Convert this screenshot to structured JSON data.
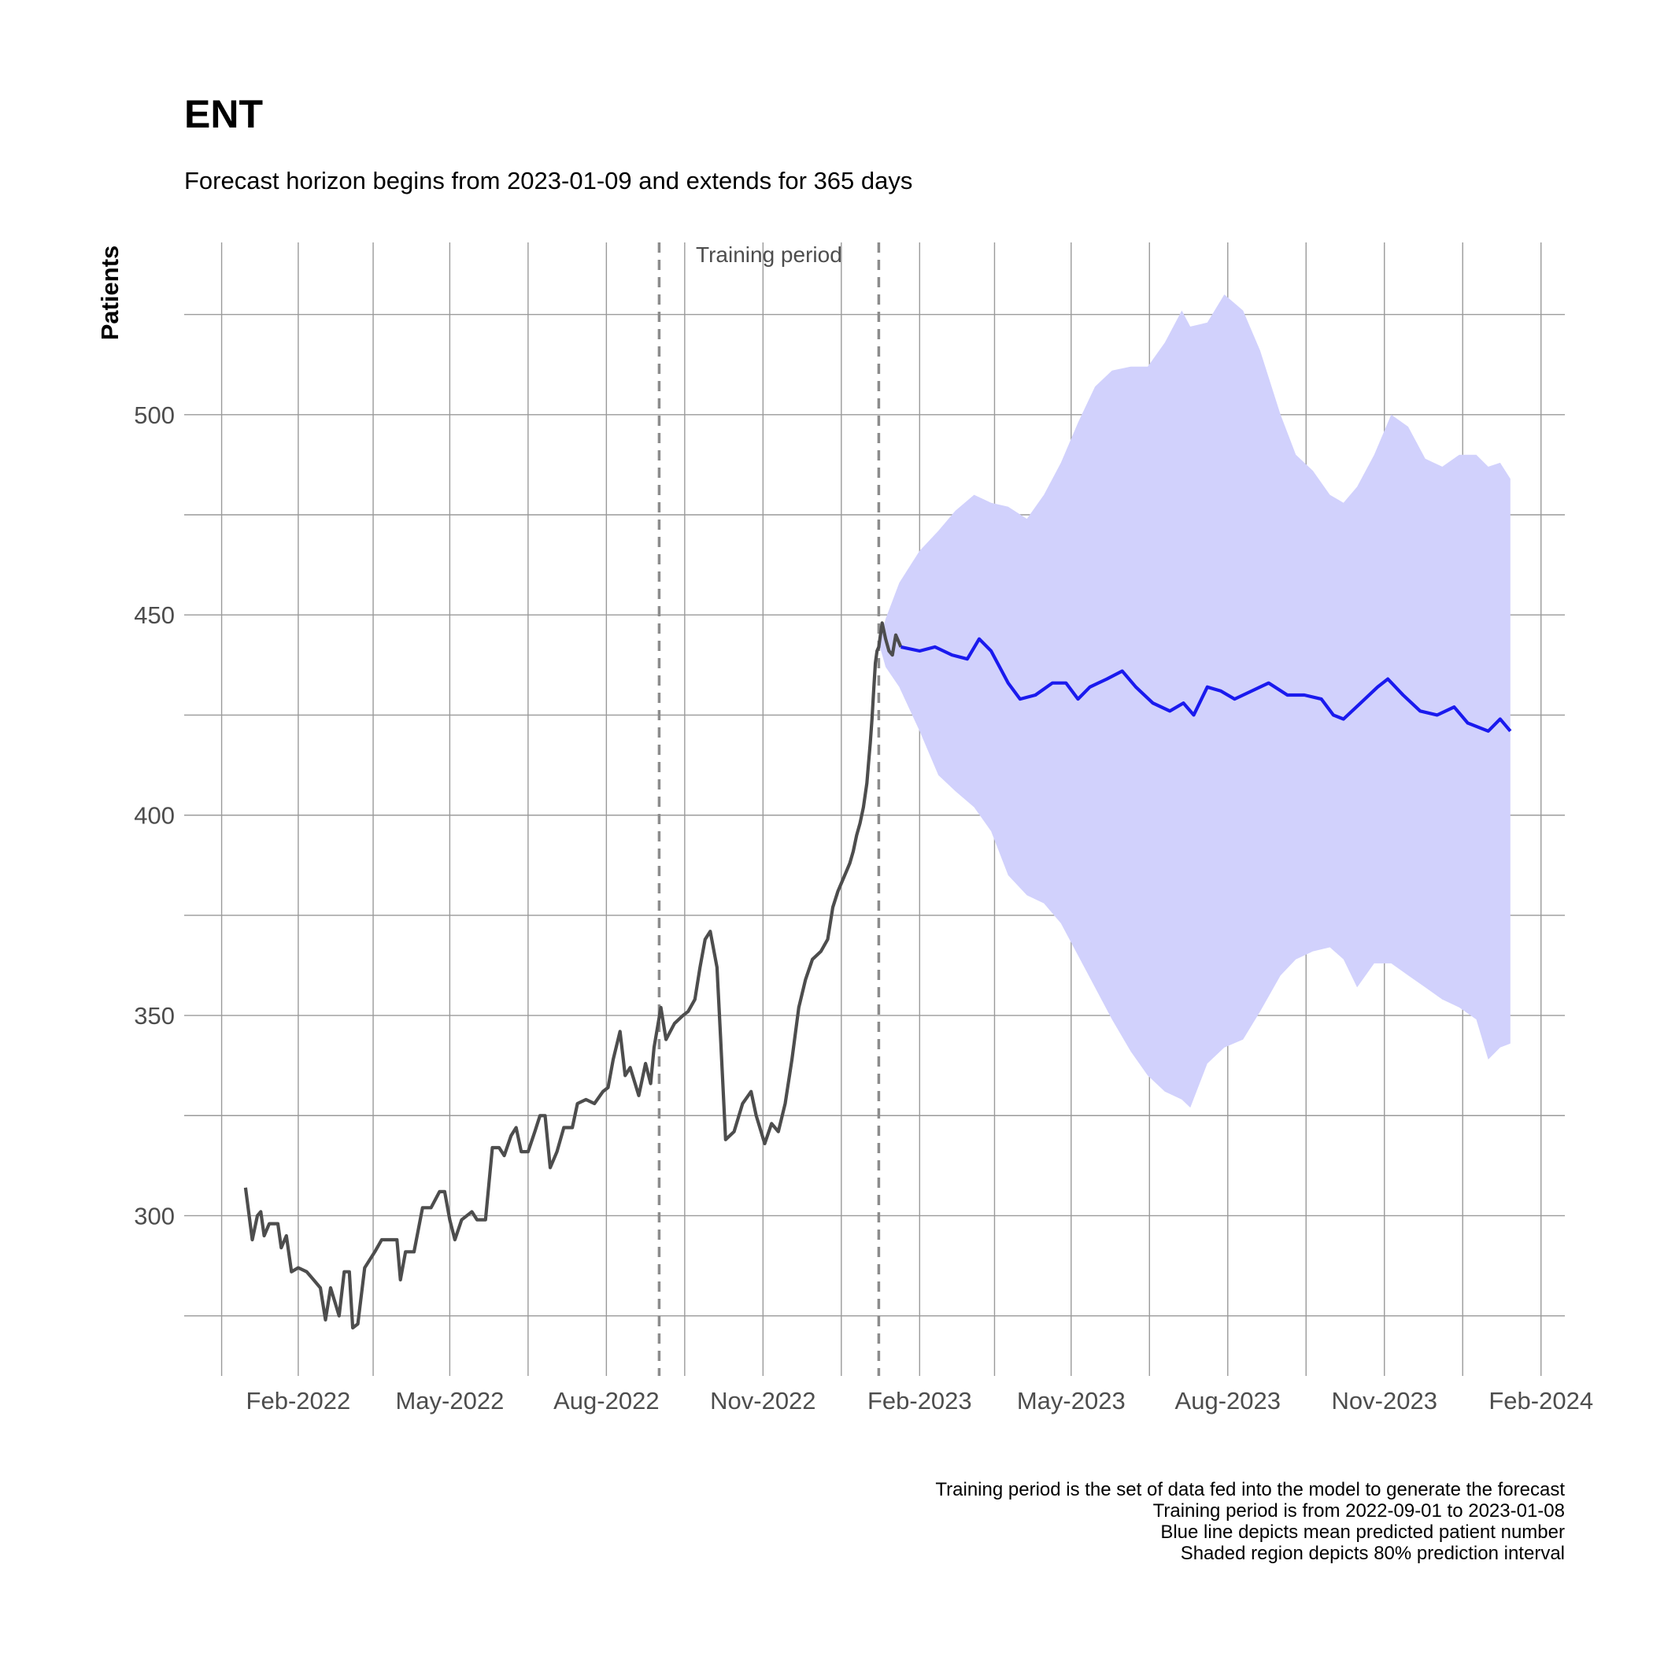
{
  "chart_data": {
    "type": "line",
    "title": "ENT",
    "subtitle": "Forecast horizon begins from 2023-01-09 and extends for 365 days",
    "xlabel": "",
    "ylabel": "Patients",
    "ylim": [
      260,
      543
    ],
    "xlim": [
      "2021-11-26",
      "2024-02-15"
    ],
    "y_ticks": [
      300,
      350,
      400,
      450,
      500
    ],
    "x_ticks": [
      {
        "date": "2022-02-01",
        "label": "Feb-2022"
      },
      {
        "date": "2022-05-01",
        "label": "May-2022"
      },
      {
        "date": "2022-08-01",
        "label": "Aug-2022"
      },
      {
        "date": "2022-11-01",
        "label": "Nov-2022"
      },
      {
        "date": "2023-02-01",
        "label": "Feb-2023"
      },
      {
        "date": "2023-05-01",
        "label": "May-2023"
      },
      {
        "date": "2023-08-01",
        "label": "Aug-2023"
      },
      {
        "date": "2023-11-01",
        "label": "Nov-2023"
      },
      {
        "date": "2024-02-01",
        "label": "Feb-2024"
      }
    ],
    "grid": true,
    "legend": "none",
    "training_period": {
      "start": "2022-09-01",
      "end": "2023-01-08",
      "label": "Training period"
    },
    "series": [
      {
        "role": "actual",
        "color": "#4d4d4d",
        "points": [
          [
            "2022-01-01",
            307
          ],
          [
            "2022-01-05",
            294
          ],
          [
            "2022-01-08",
            300
          ],
          [
            "2022-01-10",
            301
          ],
          [
            "2022-01-12",
            295
          ],
          [
            "2022-01-15",
            298
          ],
          [
            "2022-01-20",
            298
          ],
          [
            "2022-01-22",
            292
          ],
          [
            "2022-01-25",
            295
          ],
          [
            "2022-01-28",
            286
          ],
          [
            "2022-02-01",
            287
          ],
          [
            "2022-02-06",
            286
          ],
          [
            "2022-02-10",
            284
          ],
          [
            "2022-02-14",
            282
          ],
          [
            "2022-02-17",
            274
          ],
          [
            "2022-02-20",
            282
          ],
          [
            "2022-02-25",
            275
          ],
          [
            "2022-02-28",
            286
          ],
          [
            "2022-03-03",
            286
          ],
          [
            "2022-03-05",
            272
          ],
          [
            "2022-03-08",
            273
          ],
          [
            "2022-03-12",
            287
          ],
          [
            "2022-03-18",
            291
          ],
          [
            "2022-03-22",
            294
          ],
          [
            "2022-03-28",
            294
          ],
          [
            "2022-03-31",
            294
          ],
          [
            "2022-04-02",
            284
          ],
          [
            "2022-04-05",
            291
          ],
          [
            "2022-04-10",
            291
          ],
          [
            "2022-04-15",
            302
          ],
          [
            "2022-04-20",
            302
          ],
          [
            "2022-04-25",
            306
          ],
          [
            "2022-04-28",
            306
          ],
          [
            "2022-05-01",
            299
          ],
          [
            "2022-05-04",
            294
          ],
          [
            "2022-05-08",
            299
          ],
          [
            "2022-05-14",
            301
          ],
          [
            "2022-05-17",
            299
          ],
          [
            "2022-05-22",
            299
          ],
          [
            "2022-05-26",
            317
          ],
          [
            "2022-05-30",
            317
          ],
          [
            "2022-06-02",
            315
          ],
          [
            "2022-06-06",
            320
          ],
          [
            "2022-06-09",
            322
          ],
          [
            "2022-06-12",
            316
          ],
          [
            "2022-06-16",
            316
          ],
          [
            "2022-06-20",
            321
          ],
          [
            "2022-06-23",
            325
          ],
          [
            "2022-06-26",
            325
          ],
          [
            "2022-06-29",
            312
          ],
          [
            "2022-07-03",
            316
          ],
          [
            "2022-07-07",
            322
          ],
          [
            "2022-07-12",
            322
          ],
          [
            "2022-07-15",
            328
          ],
          [
            "2022-07-20",
            329
          ],
          [
            "2022-07-25",
            328
          ],
          [
            "2022-07-30",
            331
          ],
          [
            "2022-08-02",
            332
          ],
          [
            "2022-08-05",
            339
          ],
          [
            "2022-08-09",
            346
          ],
          [
            "2022-08-12",
            335
          ],
          [
            "2022-08-15",
            337
          ],
          [
            "2022-08-20",
            330
          ],
          [
            "2022-08-24",
            338
          ],
          [
            "2022-08-27",
            333
          ],
          [
            "2022-08-29",
            342
          ],
          [
            "2022-09-02",
            352
          ],
          [
            "2022-09-05",
            344
          ],
          [
            "2022-09-10",
            348
          ],
          [
            "2022-09-15",
            350
          ],
          [
            "2022-09-18",
            351
          ],
          [
            "2022-09-22",
            354
          ],
          [
            "2022-09-25",
            362
          ],
          [
            "2022-09-28",
            369
          ],
          [
            "2022-10-01",
            371
          ],
          [
            "2022-10-05",
            362
          ],
          [
            "2022-10-07",
            345
          ],
          [
            "2022-10-10",
            319
          ],
          [
            "2022-10-15",
            321
          ],
          [
            "2022-10-20",
            328
          ],
          [
            "2022-10-25",
            331
          ],
          [
            "2022-10-28",
            325
          ],
          [
            "2022-11-02",
            318
          ],
          [
            "2022-11-06",
            323
          ],
          [
            "2022-11-10",
            321
          ],
          [
            "2022-11-14",
            328
          ],
          [
            "2022-11-18",
            339
          ],
          [
            "2022-11-22",
            352
          ],
          [
            "2022-11-26",
            359
          ],
          [
            "2022-11-30",
            364
          ],
          [
            "2022-12-05",
            366
          ],
          [
            "2022-12-09",
            369
          ],
          [
            "2022-12-12",
            377
          ],
          [
            "2022-12-15",
            381
          ],
          [
            "2022-12-18",
            384
          ],
          [
            "2022-12-20",
            386
          ],
          [
            "2022-12-22",
            388
          ],
          [
            "2022-12-24",
            391
          ],
          [
            "2022-12-26",
            395
          ],
          [
            "2022-12-28",
            398
          ],
          [
            "2022-12-30",
            402
          ],
          [
            "2023-01-01",
            408
          ],
          [
            "2023-01-02",
            413
          ],
          [
            "2023-01-03",
            418
          ],
          [
            "2023-01-04",
            424
          ],
          [
            "2023-01-05",
            431
          ],
          [
            "2023-01-06",
            438
          ],
          [
            "2023-01-07",
            441
          ],
          [
            "2023-01-08",
            442
          ],
          [
            "2023-01-10",
            448
          ],
          [
            "2023-01-12",
            444
          ],
          [
            "2023-01-14",
            441
          ],
          [
            "2023-01-16",
            440
          ],
          [
            "2023-01-18",
            445
          ],
          [
            "2023-01-21",
            442
          ]
        ]
      },
      {
        "role": "forecast-mean",
        "color": "#1a1aee",
        "points": [
          [
            "2023-01-21",
            442
          ],
          [
            "2023-02-01",
            441
          ],
          [
            "2023-02-10",
            442
          ],
          [
            "2023-02-20",
            440
          ],
          [
            "2023-03-01",
            439
          ],
          [
            "2023-03-08",
            444
          ],
          [
            "2023-03-15",
            441
          ],
          [
            "2023-03-25",
            433
          ],
          [
            "2023-04-01",
            429
          ],
          [
            "2023-04-10",
            430
          ],
          [
            "2023-04-20",
            433
          ],
          [
            "2023-04-28",
            433
          ],
          [
            "2023-05-05",
            429
          ],
          [
            "2023-05-12",
            432
          ],
          [
            "2023-05-22",
            434
          ],
          [
            "2023-05-31",
            436
          ],
          [
            "2023-06-08",
            432
          ],
          [
            "2023-06-18",
            428
          ],
          [
            "2023-06-28",
            426
          ],
          [
            "2023-07-06",
            428
          ],
          [
            "2023-07-12",
            425
          ],
          [
            "2023-07-20",
            432
          ],
          [
            "2023-07-28",
            431
          ],
          [
            "2023-08-05",
            429
          ],
          [
            "2023-08-15",
            431
          ],
          [
            "2023-08-25",
            433
          ],
          [
            "2023-09-05",
            430
          ],
          [
            "2023-09-15",
            430
          ],
          [
            "2023-09-25",
            429
          ],
          [
            "2023-10-02",
            425
          ],
          [
            "2023-10-08",
            424
          ],
          [
            "2023-10-18",
            428
          ],
          [
            "2023-10-28",
            432
          ],
          [
            "2023-11-03",
            434
          ],
          [
            "2023-11-12",
            430
          ],
          [
            "2023-11-22",
            426
          ],
          [
            "2023-12-02",
            425
          ],
          [
            "2023-12-12",
            427
          ],
          [
            "2023-12-20",
            423
          ],
          [
            "2024-01-01",
            421
          ],
          [
            "2024-01-08",
            424
          ],
          [
            "2024-01-14",
            421
          ]
        ]
      }
    ],
    "interval": {
      "label": "80% prediction interval",
      "color": "#d1d1fc",
      "points": [
        [
          "2023-01-08",
          443,
          443
        ],
        [
          "2023-01-12",
          449,
          437
        ],
        [
          "2023-01-20",
          458,
          432
        ],
        [
          "2023-02-01",
          466,
          421
        ],
        [
          "2023-02-12",
          471,
          410
        ],
        [
          "2023-02-22",
          476,
          406
        ],
        [
          "2023-03-05",
          480,
          402
        ],
        [
          "2023-03-15",
          478,
          396
        ],
        [
          "2023-03-25",
          477,
          385
        ],
        [
          "2023-04-05",
          474,
          380
        ],
        [
          "2023-04-15",
          480,
          378
        ],
        [
          "2023-04-25",
          488,
          373
        ],
        [
          "2023-05-05",
          498,
          365
        ],
        [
          "2023-05-15",
          507,
          357
        ],
        [
          "2023-05-25",
          511,
          349
        ],
        [
          "2023-06-05",
          512,
          341
        ],
        [
          "2023-06-15",
          512,
          335
        ],
        [
          "2023-06-25",
          518,
          331
        ],
        [
          "2023-07-05",
          526,
          329
        ],
        [
          "2023-07-10",
          522,
          327
        ],
        [
          "2023-07-20",
          523,
          338
        ],
        [
          "2023-07-30",
          530,
          342
        ],
        [
          "2023-08-10",
          526,
          344
        ],
        [
          "2023-08-20",
          516,
          351
        ],
        [
          "2023-09-01",
          500,
          360
        ],
        [
          "2023-09-10",
          490,
          364
        ],
        [
          "2023-09-20",
          486,
          366
        ],
        [
          "2023-09-30",
          480,
          367
        ],
        [
          "2023-10-08",
          478,
          364
        ],
        [
          "2023-10-16",
          482,
          357
        ],
        [
          "2023-10-26",
          490,
          363
        ],
        [
          "2023-11-05",
          500,
          363
        ],
        [
          "2023-11-15",
          497,
          360
        ],
        [
          "2023-11-25",
          489,
          357
        ],
        [
          "2023-12-05",
          487,
          354
        ],
        [
          "2023-12-15",
          490,
          352
        ],
        [
          "2023-12-25",
          490,
          349
        ],
        [
          "2024-01-01",
          487,
          339
        ],
        [
          "2024-01-08",
          488,
          342
        ],
        [
          "2024-01-14",
          484,
          343
        ]
      ]
    },
    "caption": [
      "Training period is the set of data fed into the model to generate the forecast",
      "Training period is from 2022-09-01 to 2023-01-08",
      "Blue line depicts mean predicted patient number",
      "Shaded region depicts 80% prediction interval"
    ]
  }
}
